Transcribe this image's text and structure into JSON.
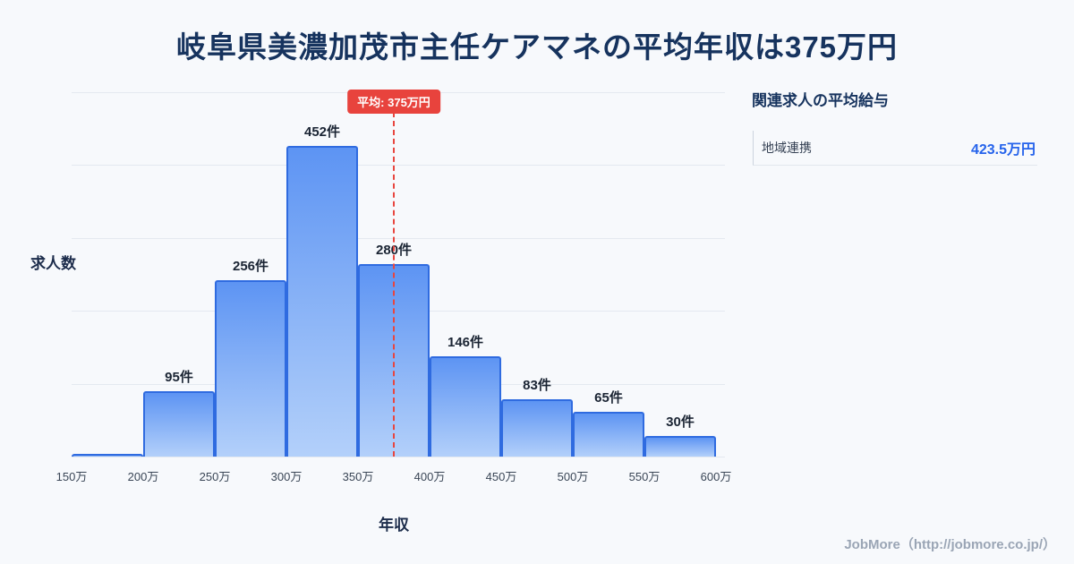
{
  "page": {
    "title": "岐阜県美濃加茂市主任ケアマネの平均年収は375万円",
    "watermark": "JobMore（http://jobmore.co.jp/）"
  },
  "chart_data": {
    "type": "bar",
    "title": "岐阜県美濃加茂市主任ケアマネの平均年収は375万円",
    "xlabel": "年収",
    "ylabel": "求人数",
    "x_tick_labels": [
      "150万",
      "200万",
      "250万",
      "300万",
      "350万",
      "400万",
      "450万",
      "500万",
      "550万",
      "600万"
    ],
    "x_start": 150,
    "x_step": 50,
    "bins": [
      {
        "range": "150万-200万",
        "count": 4,
        "data_label": ""
      },
      {
        "range": "200万-250万",
        "count": 95,
        "data_label": "95件"
      },
      {
        "range": "250万-300万",
        "count": 256,
        "data_label": "256件"
      },
      {
        "range": "300万-350万",
        "count": 452,
        "data_label": "452件"
      },
      {
        "range": "350万-400万",
        "count": 280,
        "data_label": "280件"
      },
      {
        "range": "400万-450万",
        "count": 146,
        "data_label": "146件"
      },
      {
        "range": "450万-500万",
        "count": 83,
        "data_label": "83件"
      },
      {
        "range": "500万-550万",
        "count": 65,
        "data_label": "65件"
      },
      {
        "range": "550万-600万",
        "count": 30,
        "data_label": "30件"
      }
    ],
    "ylim": [
      0,
      530
    ],
    "grid": true,
    "legend": null,
    "average": {
      "value": 375,
      "unit": "万円",
      "label": "平均: 375万円"
    }
  },
  "side_panel": {
    "heading": "関連求人の平均給与",
    "items": [
      {
        "label": "地域連携",
        "value": "423.5万円"
      }
    ]
  },
  "colors": {
    "background": "#f7f9fc",
    "title": "#16335e",
    "bar_fill_top": "#5d94f3",
    "bar_fill_bottom": "#b3d0fa",
    "bar_border": "#2f6be0",
    "average_line": "#e8463f",
    "badge_background": "#e8433d",
    "badge_text": "#ffffff",
    "panel_value": "#2563eb",
    "watermark": "#9aa5b5",
    "gridline": "#e4e9f0"
  }
}
